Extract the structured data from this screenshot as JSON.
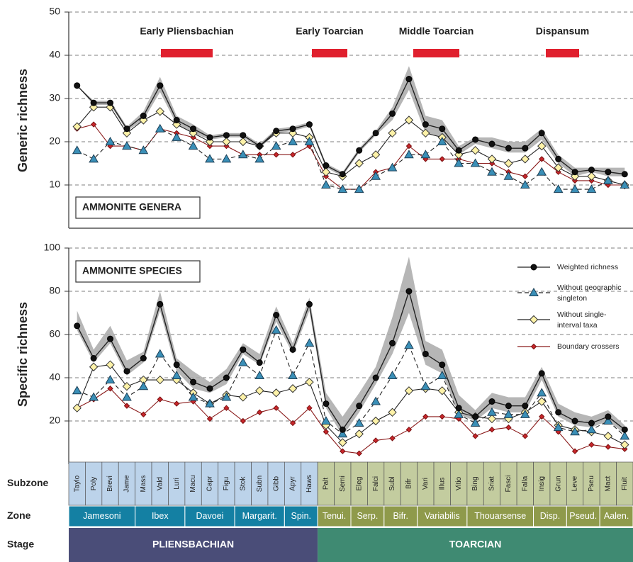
{
  "chart_data": [
    {
      "type": "line",
      "ylabel": "Generic richness",
      "panel_label": "AMMONITE GENERA",
      "categories": [
        "Taylo",
        "Poly",
        "Brevi",
        "Jame",
        "Mass",
        "Vald",
        "Luri",
        "Macu",
        "Capr",
        "Figu",
        "Stok",
        "Subn",
        "Gibb",
        "Apyr",
        "Haws",
        "Palt",
        "Semi",
        "Eleg",
        "Falci",
        "Subl",
        "Bifr",
        "Vari",
        "Illus",
        "Vitio",
        "Bing",
        "Sriat",
        "Fasci",
        "Falla",
        "Insig",
        "Grun",
        "Leve",
        "Pseu",
        "Mact",
        "Fluit"
      ],
      "ylim": [
        0,
        50
      ],
      "yticks": [
        10,
        20,
        30,
        40,
        50
      ],
      "grid": true,
      "annotations": [
        "Early Pliensbachian",
        "Early Toarcian",
        "Middle Toarcian",
        "Dispansum"
      ],
      "annotation_color": "#e0202e",
      "band": {
        "color": "#a9a9a9",
        "upper": [
          33,
          29.5,
          29.5,
          23.5,
          27,
          35,
          26,
          24,
          21.5,
          22,
          22,
          19.5,
          23,
          23.5,
          24.5,
          15,
          13,
          18.5,
          22.5,
          28,
          37.5,
          26,
          25,
          19,
          21,
          21,
          20,
          20,
          23,
          17,
          14,
          14,
          14,
          14
        ],
        "lower": [
          33,
          28.5,
          28.5,
          22.5,
          25,
          31.5,
          24,
          22,
          20.5,
          21,
          21,
          18.5,
          22,
          22.5,
          23.5,
          14,
          12,
          17.5,
          21.5,
          25,
          32,
          22,
          21,
          17,
          19.5,
          18.5,
          17.5,
          17.5,
          20.5,
          15,
          12,
          13,
          12,
          12
        ]
      },
      "series": [
        {
          "marker": "circle",
          "color": "#111111",
          "values": [
            33,
            29,
            29,
            23,
            26,
            33,
            25,
            23,
            21,
            21.5,
            21.5,
            19,
            22.5,
            23,
            24,
            14.5,
            12.5,
            18,
            22,
            26.5,
            34.5,
            24,
            23,
            18,
            20.5,
            19.5,
            18.5,
            18.5,
            22,
            16,
            13,
            13.5,
            13,
            12.5
          ]
        },
        {
          "marker": "triangle",
          "color": "#3a8fb7",
          "dashed": true,
          "values": [
            18,
            16,
            20,
            19,
            18,
            23,
            21,
            19,
            16,
            16,
            17,
            16,
            19,
            20,
            20,
            10,
            9,
            9,
            12,
            14,
            17,
            17,
            20,
            15,
            15,
            13,
            12,
            10,
            13,
            9,
            9,
            9,
            11,
            10
          ]
        },
        {
          "marker": "diamond",
          "color": "#fdf2a8",
          "values": [
            23.5,
            28,
            28,
            22,
            25,
            27,
            24,
            22,
            20,
            20,
            20,
            19,
            22,
            22,
            21,
            13,
            12,
            15,
            17,
            22,
            25,
            22,
            21,
            17,
            18,
            16,
            15,
            16,
            19,
            14,
            12,
            12,
            11,
            10
          ]
        },
        {
          "marker": "small-diamond",
          "color": "#c8262b",
          "values": [
            23,
            24,
            19,
            19,
            18,
            23,
            22,
            21,
            19,
            19,
            17,
            17,
            17,
            17,
            19,
            12,
            9,
            9,
            13,
            14,
            19,
            16,
            16,
            16,
            15,
            15,
            13,
            12,
            16,
            13,
            11,
            11,
            10,
            10
          ]
        }
      ]
    },
    {
      "type": "line",
      "ylabel": "Specific richness",
      "panel_label": "AMMONITE SPECIES",
      "ylim": [
        0,
        100
      ],
      "yticks": [
        20,
        40,
        60,
        80,
        100
      ],
      "grid": true,
      "legend": "top-right",
      "band": {
        "color": "#a9a9a9",
        "upper": [
          71,
          53,
          64,
          48,
          52,
          80,
          49,
          43,
          38,
          44,
          56,
          51,
          73,
          56,
          77,
          33,
          22,
          33,
          45,
          68,
          96,
          57,
          53,
          32,
          25,
          33,
          31,
          31,
          45,
          28,
          24,
          22,
          25,
          18
        ],
        "lower": [
          62,
          47,
          56,
          41,
          47,
          71,
          43,
          35,
          33,
          37,
          51,
          46,
          66,
          51,
          71,
          26,
          13,
          24,
          37,
          51,
          70,
          46,
          42,
          23,
          20,
          26,
          24,
          24,
          39,
          22,
          18,
          17,
          20,
          14
        ]
      },
      "series": [
        {
          "name": "Weighted richness",
          "marker": "circle",
          "color": "#111111",
          "values": [
            64,
            49,
            58,
            43,
            49,
            74,
            46,
            38,
            35,
            40,
            53,
            47,
            69,
            53,
            74,
            28,
            16,
            27,
            40,
            56,
            80,
            51,
            46,
            26,
            22,
            29,
            27,
            27,
            42,
            24,
            20,
            19,
            22,
            16
          ]
        },
        {
          "name": "Without geographic singleton",
          "marker": "triangle",
          "color": "#3a8fb7",
          "dashed": true,
          "values": [
            34,
            31,
            39,
            31,
            36,
            51,
            41,
            31,
            28,
            31,
            47,
            41,
            62,
            41,
            56,
            20,
            14,
            19,
            29,
            41,
            55,
            36,
            41,
            23,
            19,
            24,
            23,
            23,
            33,
            17,
            15,
            16,
            20,
            13
          ]
        },
        {
          "name": "Without single-interval taxa",
          "marker": "diamond",
          "color": "#fdf2a8",
          "values": [
            26,
            45,
            46,
            36,
            39,
            39,
            39,
            33,
            28,
            32,
            31,
            34,
            33,
            35,
            38,
            18,
            10,
            14,
            20,
            24,
            34,
            35,
            34,
            24,
            22,
            21,
            21,
            24,
            29,
            18,
            16,
            15,
            13,
            9
          ]
        },
        {
          "name": "Boundary crossers",
          "marker": "small-diamond",
          "color": "#c8262b",
          "values": [
            26,
            30,
            35,
            27,
            23,
            30,
            28,
            29,
            21,
            26,
            20,
            24,
            26,
            19,
            26,
            15,
            6,
            5,
            11,
            12,
            16,
            22,
            22,
            21,
            13,
            16,
            17,
            13,
            22,
            15,
            6,
            9,
            8,
            7
          ]
        }
      ]
    }
  ],
  "strat_table": {
    "row_labels": [
      "Subzone",
      "Zone",
      "Stage"
    ],
    "zones": [
      "Jamesoni",
      "Ibex",
      "Davoei",
      "Margarit.",
      "Spin.",
      "Tenui.",
      "Serp.",
      "Bifr.",
      "Variabilis",
      "Thouarsense",
      "Disp.",
      "Pseud.",
      "Aalen."
    ],
    "stages": [
      "PLIENSBACHIAN",
      "TOARCIAN"
    ]
  }
}
